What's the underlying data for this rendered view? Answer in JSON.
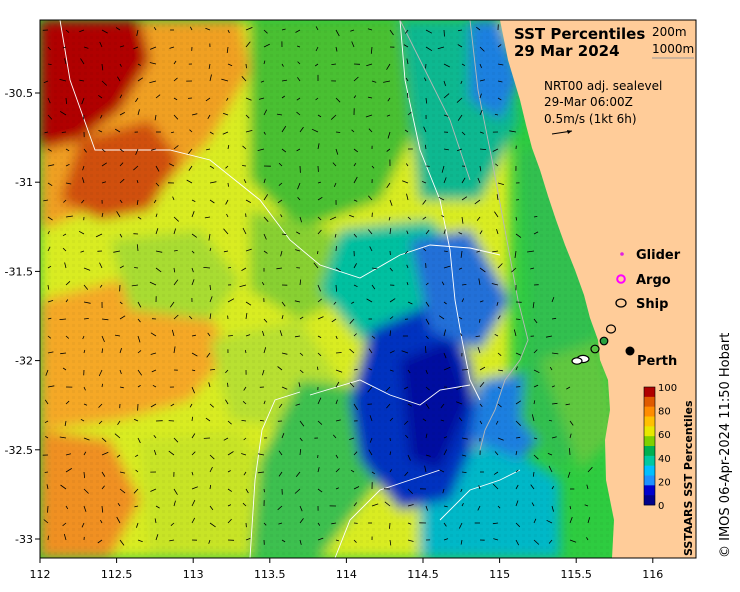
{
  "title_line1": "SST Percentiles",
  "title_line2": "29 Mar 2024",
  "depth_200": "200m",
  "depth_1000": "1000m",
  "model_line1": "NRT00 adj. sealevel",
  "model_line2": "29-Mar 06:00Z",
  "model_line3": "0.5m/s (1kt 6h)",
  "legend": {
    "glider": "Glider",
    "argo": "Argo",
    "ship": "Ship"
  },
  "city_label": "Perth",
  "colorbar": {
    "label": "SSTAARS SST Percentiles",
    "ticks": [
      "0",
      "20",
      "40",
      "60",
      "80",
      "100"
    ],
    "colors": [
      "#00008b",
      "#0000cd",
      "#1e90ff",
      "#00bfff",
      "#00c8a0",
      "#00b050",
      "#7fd000",
      "#e8e800",
      "#ffc000",
      "#ff8c00",
      "#e05a00",
      "#b00000"
    ]
  },
  "credit": "© IMOS 06-Apr-2024 11:50 Hobart",
  "axes": {
    "x_ticks": [
      "112",
      "112.5",
      "113",
      "113.5",
      "114",
      "114.5",
      "115",
      "115.5",
      "116"
    ],
    "y_ticks": [
      "-30.5",
      "-31",
      "-31.5",
      "-32",
      "-32.5",
      "-33"
    ]
  },
  "land_color": "#ffcc99"
}
